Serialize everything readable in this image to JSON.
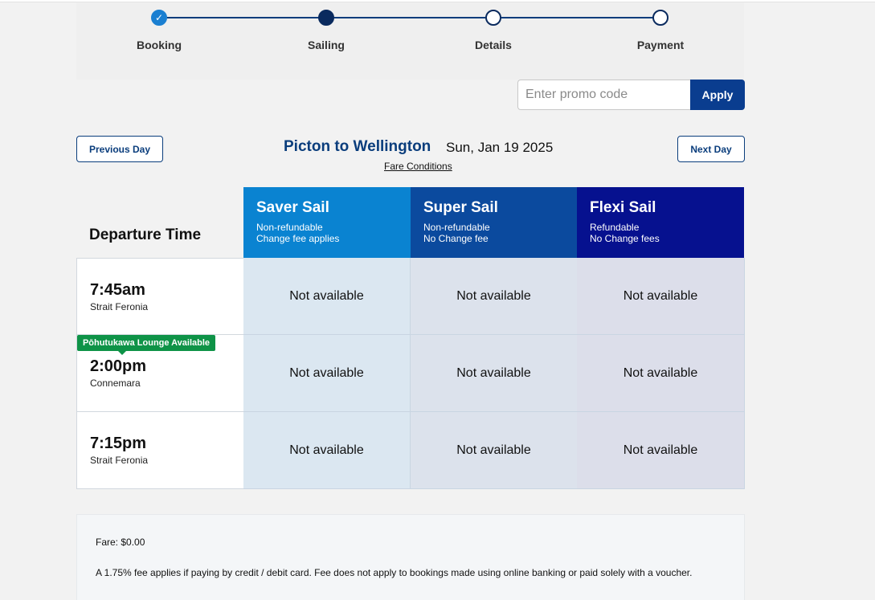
{
  "stepper": {
    "steps": [
      {
        "label": "Booking",
        "state": "done"
      },
      {
        "label": "Sailing",
        "state": "current"
      },
      {
        "label": "Details",
        "state": "upcoming"
      },
      {
        "label": "Payment",
        "state": "upcoming"
      }
    ],
    "check_glyph": "✓"
  },
  "promo": {
    "placeholder": "Enter promo code",
    "apply_label": "Apply"
  },
  "day_nav": {
    "prev_label": "Previous Day",
    "next_label": "Next Day",
    "route": "Picton to Wellington",
    "date": "Sun, Jan 19 2025",
    "fare_conditions_label": "Fare Conditions"
  },
  "table": {
    "departure_header": "Departure Time",
    "fares": [
      {
        "name": "Saver Sail",
        "line1": "Non-refundable",
        "line2": "Change fee applies",
        "color": "#0a83d1"
      },
      {
        "name": "Super Sail",
        "line1": "Non-refundable",
        "line2": "No Change fee",
        "color": "#0b4a9e"
      },
      {
        "name": "Flexi Sail",
        "line1": "Refundable",
        "line2": "No Change fees",
        "color": "#06118f"
      }
    ],
    "rows": [
      {
        "time": "7:45am",
        "vessel": "Strait Feronia",
        "cells": [
          "Not available",
          "Not available",
          "Not available"
        ]
      },
      {
        "time": "2:00pm",
        "vessel": "Connemara",
        "badge": "Pōhutukawa Lounge Available",
        "cells": [
          "Not available",
          "Not available",
          "Not available"
        ]
      },
      {
        "time": "7:15pm",
        "vessel": "Strait Feronia",
        "cells": [
          "Not available",
          "Not available",
          "Not available"
        ]
      }
    ]
  },
  "summary": {
    "fare": "Fare: $0.00",
    "fee_note": "A 1.75% fee applies if paying by credit / debit card. Fee does not apply to bookings made using online banking or paid solely with a voucher."
  },
  "colors": {
    "brand_navy": "#0a3d7c",
    "lounge_green": "#0e9347"
  }
}
